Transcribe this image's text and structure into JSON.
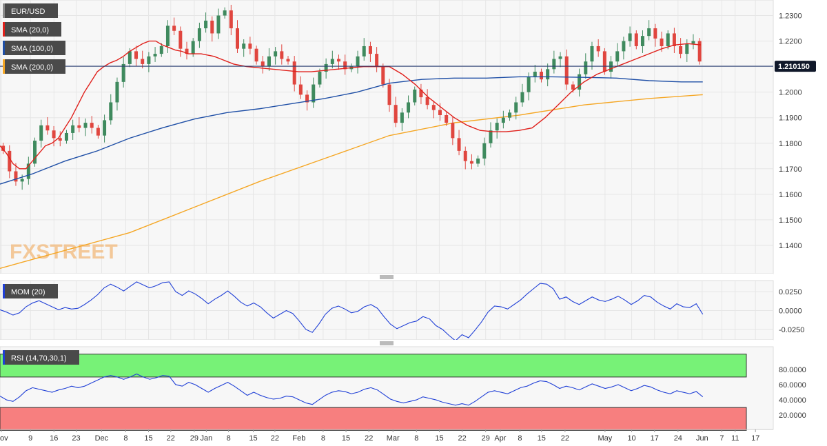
{
  "chart_data": [
    {
      "type": "line",
      "title": "",
      "symbol": "EUR/USD",
      "last_price_label": "1.210150",
      "last_price": 1.21015,
      "ylim": [
        1.13,
        1.235
      ],
      "y_ticks": [
        1.14,
        1.15,
        1.16,
        1.17,
        1.18,
        1.19,
        1.2,
        1.21,
        1.22,
        1.23
      ],
      "y_tick_labels": [
        "1.1400",
        "1.1500",
        "1.1600",
        "1.1700",
        "1.1800",
        "1.1900",
        "1.2000",
        "1.2100",
        "1.2200",
        "1.2300"
      ],
      "watermark": "FXSTREET",
      "series": [
        {
          "name": "SMA (20,0)",
          "color": "#e0201b",
          "values": [
            [
              0,
              1.179
            ],
            [
              10,
              1.176
            ],
            [
              20,
              1.172
            ],
            [
              30,
              1.17
            ],
            [
              40,
              1.17
            ],
            [
              50,
              1.173
            ],
            [
              60,
              1.176
            ],
            [
              70,
              1.179
            ],
            [
              80,
              1.18
            ],
            [
              90,
              1.182
            ],
            [
              100,
              1.186
            ],
            [
              110,
              1.19
            ],
            [
              120,
              1.195
            ],
            [
              130,
              1.2
            ],
            [
              140,
              1.204
            ],
            [
              150,
              1.208
            ],
            [
              160,
              1.21
            ],
            [
              170,
              1.2115
            ],
            [
              180,
              1.2125
            ],
            [
              190,
              1.214
            ],
            [
              200,
              1.216
            ],
            [
              210,
              1.2175
            ],
            [
              220,
              1.219
            ],
            [
              230,
              1.22
            ],
            [
              240,
              1.22
            ],
            [
              250,
              1.2185
            ],
            [
              260,
              1.2175
            ],
            [
              270,
              1.2165
            ],
            [
              280,
              1.216
            ],
            [
              290,
              1.215
            ],
            [
              300,
              1.215
            ],
            [
              310,
              1.215
            ],
            [
              320,
              1.2145
            ],
            [
              330,
              1.214
            ],
            [
              340,
              1.213
            ],
            [
              350,
              1.212
            ],
            [
              360,
              1.211
            ],
            [
              380,
              1.21
            ],
            [
              400,
              1.2095
            ],
            [
              420,
              1.209
            ],
            [
              440,
              1.2085
            ],
            [
              460,
              1.208
            ],
            [
              480,
              1.208
            ],
            [
              500,
              1.2085
            ],
            [
              520,
              1.209
            ],
            [
              540,
              1.2095
            ],
            [
              560,
              1.21
            ],
            [
              580,
              1.21
            ],
            [
              600,
              1.21
            ],
            [
              620,
              1.207
            ],
            [
              640,
              1.203
            ],
            [
              660,
              1.198
            ],
            [
              680,
              1.194
            ],
            [
              700,
              1.19
            ],
            [
              720,
              1.187
            ],
            [
              740,
              1.185
            ],
            [
              760,
              1.1845
            ],
            [
              780,
              1.1845
            ],
            [
              800,
              1.185
            ],
            [
              820,
              1.186
            ],
            [
              840,
              1.19
            ],
            [
              860,
              1.195
            ],
            [
              880,
              1.2
            ],
            [
              900,
              1.204
            ],
            [
              920,
              1.207
            ],
            [
              940,
              1.209
            ],
            [
              960,
              1.211
            ],
            [
              980,
              1.213
            ],
            [
              1000,
              1.215
            ],
            [
              1020,
              1.217
            ],
            [
              1040,
              1.2185
            ],
            [
              1060,
              1.219
            ],
            [
              1080,
              1.2185
            ]
          ]
        },
        {
          "name": "SMA (100,0)",
          "color": "#1f4fa6",
          "values": [
            [
              0,
              1.164
            ],
            [
              50,
              1.168
            ],
            [
              100,
              1.173
            ],
            [
              150,
              1.177
            ],
            [
              200,
              1.182
            ],
            [
              250,
              1.186
            ],
            [
              300,
              1.1895
            ],
            [
              350,
              1.192
            ],
            [
              400,
              1.1935
            ],
            [
              450,
              1.1955
            ],
            [
              500,
              1.1975
            ],
            [
              550,
              1.2
            ],
            [
              600,
              1.2035
            ],
            [
              650,
              1.205
            ],
            [
              700,
              1.2055
            ],
            [
              750,
              1.2055
            ],
            [
              800,
              1.206
            ],
            [
              850,
              1.206
            ],
            [
              900,
              1.2058
            ],
            [
              950,
              1.2055
            ],
            [
              1000,
              1.2045
            ],
            [
              1050,
              1.204
            ],
            [
              1083,
              1.204
            ]
          ]
        },
        {
          "name": "SMA (200,0)",
          "color": "#f5a623",
          "values": [
            [
              0,
              1.131
            ],
            [
              100,
              1.138
            ],
            [
              200,
              1.145
            ],
            [
              300,
              1.155
            ],
            [
              400,
              1.165
            ],
            [
              500,
              1.174
            ],
            [
              600,
              1.183
            ],
            [
              700,
              1.188
            ],
            [
              800,
              1.191
            ],
            [
              900,
              1.195
            ],
            [
              1000,
              1.1975
            ],
            [
              1083,
              1.199
            ]
          ]
        }
      ],
      "candles_close": [
        1.177,
        1.169,
        1.165,
        1.166,
        1.172,
        1.181,
        1.187,
        1.185,
        1.182,
        1.181,
        1.184,
        1.187,
        1.186,
        1.188,
        1.186,
        1.183,
        1.189,
        1.196,
        1.204,
        1.211,
        1.216,
        1.213,
        1.211,
        1.214,
        1.215,
        1.218,
        1.226,
        1.224,
        1.217,
        1.215,
        1.22,
        1.225,
        1.228,
        1.223,
        1.23,
        1.232,
        1.225,
        1.217,
        1.219,
        1.217,
        1.212,
        1.21,
        1.214,
        1.216,
        1.213,
        1.212,
        1.203,
        1.199,
        1.196,
        1.203,
        1.208,
        1.211,
        1.213,
        1.212,
        1.209,
        1.21,
        1.214,
        1.218,
        1.215,
        1.21,
        1.203,
        1.195,
        1.188,
        1.192,
        1.196,
        1.201,
        1.198,
        1.195,
        1.193,
        1.191,
        1.188,
        1.182,
        1.177,
        1.173,
        1.172,
        1.174,
        1.18,
        1.185,
        1.188,
        1.19,
        1.192,
        1.196,
        1.2,
        1.206,
        1.208,
        1.205,
        1.209,
        1.213,
        1.214,
        1.203,
        1.201,
        1.207,
        1.212,
        1.218,
        1.216,
        1.208,
        1.212,
        1.216,
        1.22,
        1.223,
        1.218,
        1.222,
        1.225,
        1.221,
        1.218,
        1.223,
        1.218,
        1.215,
        1.219,
        1.22,
        1.212
      ]
    },
    {
      "type": "line",
      "name": "MOM (20)",
      "color": "#1f3fd6",
      "ylim": [
        -0.037,
        0.037
      ],
      "y_ticks": [
        0.025,
        0.0,
        -0.025
      ],
      "y_tick_labels": [
        "0.0250",
        "0.0000",
        "-0.0250"
      ],
      "values": [
        0.001,
        -0.002,
        -0.006,
        -0.003,
        0.005,
        0.01,
        0.013,
        0.009,
        0.005,
        0.001,
        0.004,
        0.002,
        0.003,
        0.008,
        0.014,
        0.021,
        0.03,
        0.035,
        0.031,
        0.026,
        0.032,
        0.038,
        0.034,
        0.03,
        0.033,
        0.037,
        0.038,
        0.025,
        0.02,
        0.026,
        0.022,
        0.016,
        0.009,
        0.015,
        0.02,
        0.026,
        0.019,
        0.011,
        0.006,
        0.01,
        0.005,
        -0.003,
        -0.01,
        -0.005,
        0.0,
        -0.004,
        -0.014,
        -0.025,
        -0.029,
        -0.018,
        -0.005,
        0.003,
        0.006,
        0.002,
        -0.003,
        -0.001,
        0.005,
        0.008,
        0.003,
        -0.008,
        -0.018,
        -0.024,
        -0.02,
        -0.016,
        -0.014,
        -0.008,
        -0.011,
        -0.02,
        -0.025,
        -0.033,
        -0.04,
        -0.032,
        -0.036,
        -0.026,
        -0.015,
        -0.002,
        0.006,
        0.005,
        0.002,
        0.008,
        0.014,
        0.022,
        0.029,
        0.036,
        0.035,
        0.029,
        0.015,
        0.018,
        0.012,
        0.008,
        0.013,
        0.018,
        0.014,
        0.012,
        0.015,
        0.019,
        0.014,
        0.008,
        0.013,
        0.02,
        0.018,
        0.011,
        0.006,
        0.002,
        0.009,
        0.005,
        0.004,
        0.009,
        -0.005
      ]
    },
    {
      "type": "line",
      "name": "RSI (14,70,30,1)",
      "color": "#1f3fd6",
      "ylim": [
        3.0,
        107.0
      ],
      "y_ticks": [
        80,
        60,
        40,
        20
      ],
      "y_tick_labels": [
        "80.0000",
        "60.0000",
        "40.0000",
        "20.0000"
      ],
      "overbought": 70,
      "oversold": 30,
      "overbought_color": "#77f277",
      "oversold_color": "#f77f7f",
      "values": [
        45,
        40,
        38,
        44,
        52,
        56,
        54,
        52,
        50,
        53,
        55,
        58,
        56,
        58,
        62,
        66,
        70,
        72,
        70,
        67,
        70,
        74,
        70,
        67,
        69,
        72,
        71,
        60,
        58,
        63,
        60,
        55,
        50,
        55,
        59,
        63,
        58,
        52,
        46,
        50,
        46,
        43,
        41,
        42,
        45,
        44,
        40,
        36,
        34,
        40,
        46,
        50,
        52,
        51,
        48,
        50,
        54,
        56,
        53,
        47,
        41,
        38,
        36,
        38,
        40,
        44,
        42,
        40,
        37,
        35,
        33,
        35,
        33,
        38,
        44,
        50,
        52,
        50,
        48,
        52,
        56,
        58,
        62,
        65,
        64,
        60,
        55,
        58,
        56,
        53,
        57,
        61,
        58,
        55,
        57,
        60,
        56,
        52,
        55,
        59,
        57,
        53,
        50,
        48,
        52,
        50,
        48,
        51,
        44
      ]
    }
  ],
  "x_ticks": [
    {
      "label": "Nov",
      "idx": 0.2
    },
    {
      "label": "9",
      "idx": 4.8
    },
    {
      "label": "16",
      "idx": 8.5
    },
    {
      "label": "23",
      "idx": 12
    },
    {
      "label": "Dec",
      "idx": 16
    },
    {
      "label": "8",
      "idx": 19.8
    },
    {
      "label": "15",
      "idx": 23.4
    },
    {
      "label": "22",
      "idx": 26.9
    },
    {
      "label": "29",
      "idx": 30.6
    },
    {
      "label": "Jan",
      "idx": 32.5
    },
    {
      "label": "8",
      "idx": 36
    },
    {
      "label": "15",
      "idx": 39.9
    },
    {
      "label": "22",
      "idx": 43.3
    },
    {
      "label": "Feb",
      "idx": 47.1
    },
    {
      "label": "8",
      "idx": 50.9
    },
    {
      "label": "15",
      "idx": 54.5
    },
    {
      "label": "22",
      "idx": 58.1
    },
    {
      "label": "Mar",
      "idx": 61.9
    },
    {
      "label": "8",
      "idx": 65.6
    },
    {
      "label": "15",
      "idx": 69.2
    },
    {
      "label": "22",
      "idx": 72.8
    },
    {
      "label": "29",
      "idx": 76.5
    },
    {
      "label": "Apr",
      "idx": 78.8
    },
    {
      "label": "8",
      "idx": 81.9
    },
    {
      "label": "15",
      "idx": 85.3
    },
    {
      "label": "22",
      "idx": 89.0
    },
    {
      "label": "May",
      "idx": 95.3
    },
    {
      "label": "10",
      "idx": 99.5
    },
    {
      "label": "17",
      "idx": 103.1
    },
    {
      "label": "24",
      "idx": 106.8
    },
    {
      "label": "Jun",
      "idx": 110.6
    },
    {
      "label": "7",
      "idx": 113.7
    },
    {
      "label": "11",
      "idx": 115.8
    },
    {
      "label": "17",
      "idx": 119.0
    }
  ],
  "x_idx_max": 121.8,
  "colors": {
    "up": "#3f8a5e",
    "down": "#e0463f",
    "last_price_line": "#2b3f73",
    "last_price_badge": "#10182a"
  }
}
